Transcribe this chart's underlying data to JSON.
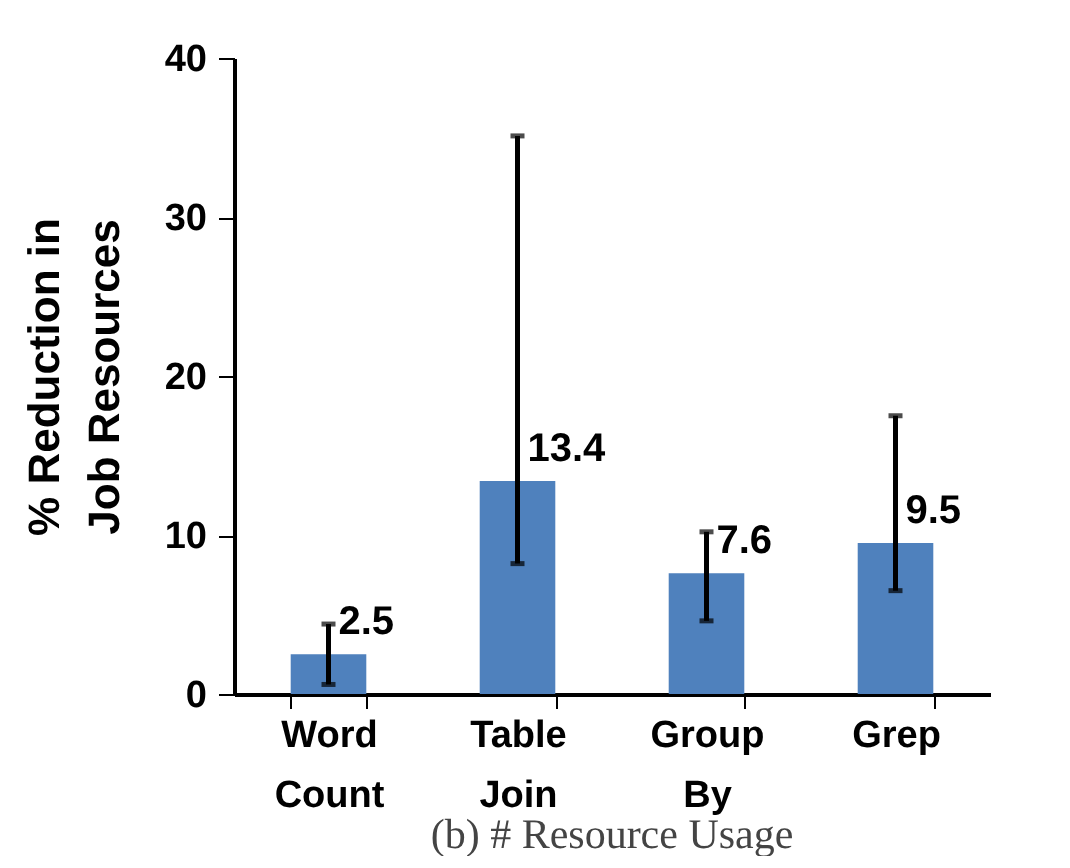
{
  "chart_data": {
    "type": "bar",
    "ylabel": "% Reduction in Job Resources",
    "categories": [
      "Word Count",
      "Table Join",
      "Group By",
      "Grep"
    ],
    "values": [
      2.5,
      13.4,
      7.6,
      9.5
    ],
    "color": "#4f81bd",
    "errors": [
      [
        0.6,
        4.4
      ],
      [
        8.2,
        35.1
      ],
      [
        4.6,
        10.2
      ],
      [
        6.5,
        17.5
      ]
    ],
    "data_labels": true,
    "ylim": [
      0,
      40
    ],
    "yticks": [
      0,
      10,
      20,
      30,
      40
    ],
    "grid": false,
    "annotations": [
      "(b) # Resource Usage"
    ]
  }
}
